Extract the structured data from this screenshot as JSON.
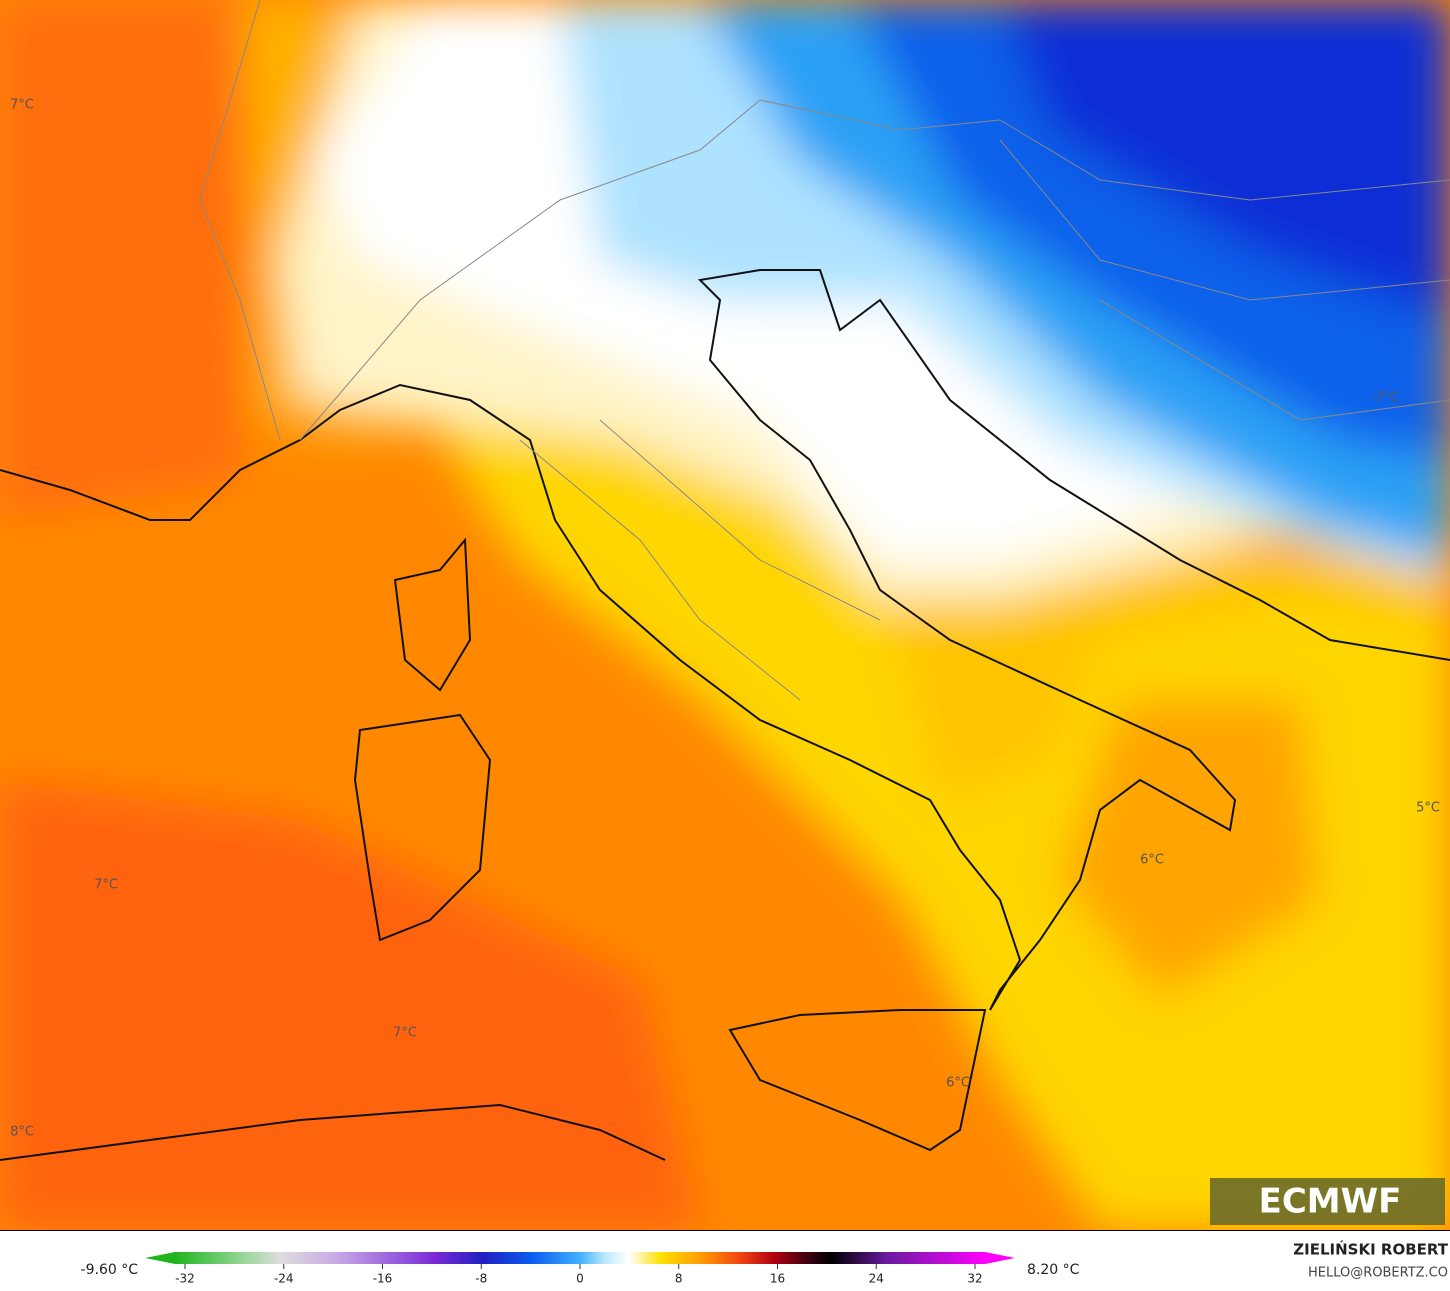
{
  "map_labels": [
    "7°C",
    "7°C",
    "7°C",
    "-7°C",
    "5°C",
    "6°C",
    "6°C",
    "8°C"
  ],
  "logo": "ECMWF",
  "colorbar": {
    "min_label": "-9.60 °C",
    "max_label": "8.20 °C",
    "range": [
      -32,
      32
    ],
    "ticks": [
      -32,
      -24,
      -16,
      -8,
      0,
      8,
      16,
      24,
      32
    ]
  },
  "credit": {
    "name": "ZIELIŃSKI ROBERT",
    "email": "HELLO@ROBERTZ.CO"
  }
}
